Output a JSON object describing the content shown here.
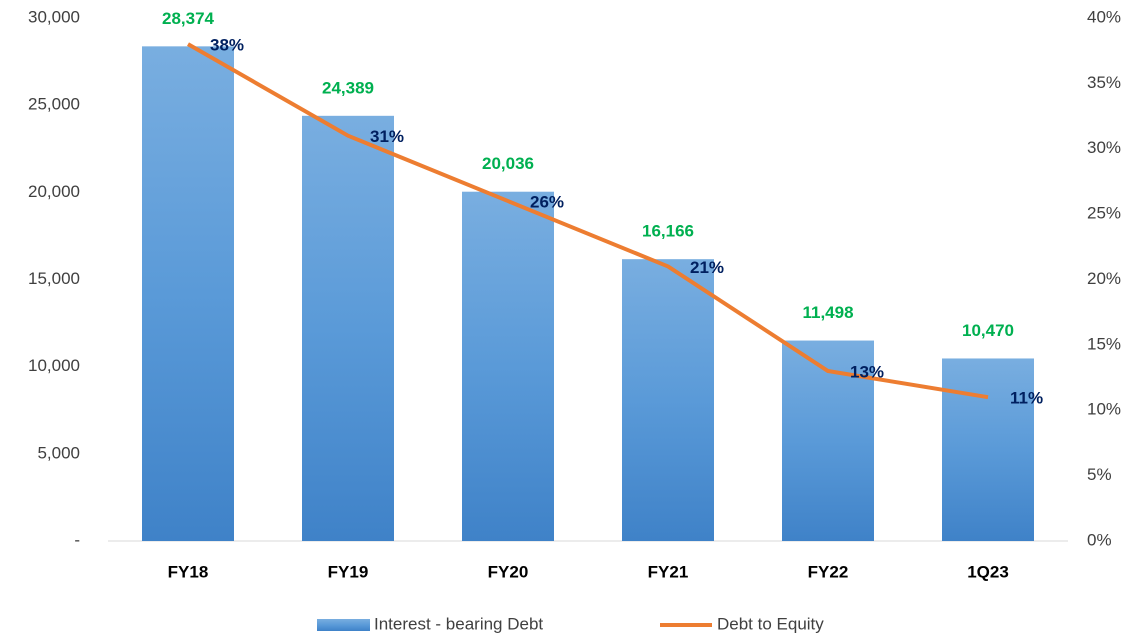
{
  "chart_data": {
    "type": "bar",
    "categories": [
      "FY18",
      "FY19",
      "FY20",
      "FY21",
      "FY22",
      "1Q23"
    ],
    "series": [
      {
        "name": "Interest - bearing Debt",
        "type": "bar",
        "color": "#5b9bd5",
        "values": [
          28374,
          24389,
          20036,
          16166,
          11498,
          10470
        ],
        "value_labels": [
          "28,374",
          "24,389",
          "20,036",
          "16,166",
          "11,498",
          "10,470"
        ],
        "label_color": "#00b050"
      },
      {
        "name": "Debt to Equity",
        "type": "line",
        "axis": "y2",
        "color": "#ed7d31",
        "values": [
          38,
          31,
          26,
          21,
          13,
          11
        ],
        "value_labels": [
          "38%",
          "31%",
          "26%",
          "21%",
          "13%",
          "11%"
        ],
        "label_color": "#002060"
      }
    ],
    "ylim": [
      0,
      30000
    ],
    "yticks": [
      {
        "value": 0,
        "label": "-"
      },
      {
        "value": 5000,
        "label": "5,000"
      },
      {
        "value": 10000,
        "label": "10,000"
      },
      {
        "value": 15000,
        "label": "15,000"
      },
      {
        "value": 20000,
        "label": "20,000"
      },
      {
        "value": 25000,
        "label": "25,000"
      },
      {
        "value": 30000,
        "label": "30,000"
      }
    ],
    "y2lim": [
      0,
      40
    ],
    "y2ticks": [
      {
        "value": 0,
        "label": "0%"
      },
      {
        "value": 5,
        "label": "5%"
      },
      {
        "value": 10,
        "label": "10%"
      },
      {
        "value": 15,
        "label": "15%"
      },
      {
        "value": 20,
        "label": "20%"
      },
      {
        "value": 25,
        "label": "25%"
      },
      {
        "value": 30,
        "label": "30%"
      },
      {
        "value": 35,
        "label": "35%"
      },
      {
        "value": 40,
        "label": "40%"
      }
    ],
    "grid": false,
    "legend": "bottom"
  }
}
